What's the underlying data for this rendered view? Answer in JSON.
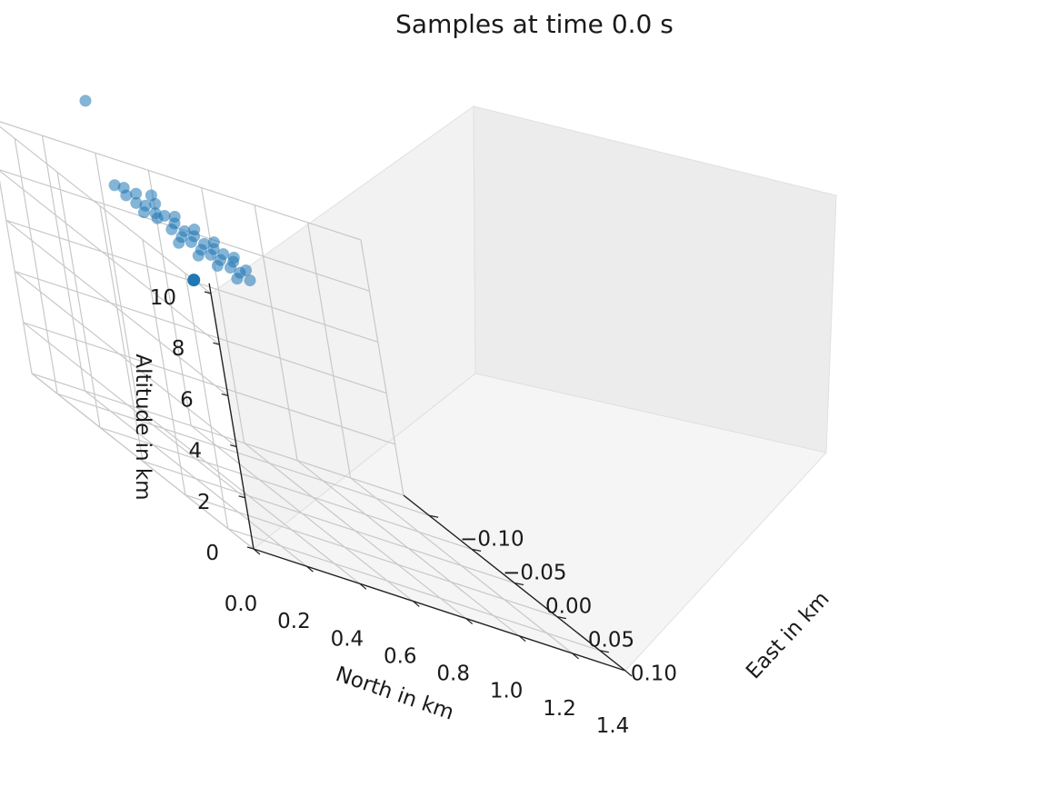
{
  "chart_data": {
    "type": "scatter",
    "title": "Samples at time 0.0 s",
    "xlabel": "North in km",
    "ylabel": "East in km",
    "zlabel": "Altitude in km",
    "xlim": [
      0.0,
      1.4
    ],
    "ylim": [
      -0.13,
      0.13
    ],
    "zlim": [
      0,
      10
    ],
    "x_ticks": [
      "0.0",
      "0.2",
      "0.4",
      "0.6",
      "0.8",
      "1.0",
      "1.2",
      "1.4"
    ],
    "y_ticks": [
      "−0.10",
      "−0.05",
      "0.00",
      "0.05",
      "0.10"
    ],
    "z_ticks": [
      "0",
      "2",
      "4",
      "6",
      "8",
      "10"
    ],
    "grid": true,
    "marker_color": "#1f77b4",
    "series": [
      {
        "points": [
          {
            "x": 0.0,
            "y": 0.11,
            "z": 10.0
          },
          {
            "x": 0.13,
            "y": -0.04,
            "z": 13.5
          },
          {
            "x": 0.27,
            "y": -0.02,
            "z": 10.8
          },
          {
            "x": 0.2,
            "y": -0.03,
            "z": 10.3
          },
          {
            "x": 0.22,
            "y": -0.025,
            "z": 10.2
          },
          {
            "x": 0.24,
            "y": -0.02,
            "z": 10.3
          },
          {
            "x": 0.26,
            "y": -0.015,
            "z": 10.2
          },
          {
            "x": 0.28,
            "y": -0.01,
            "z": 10.3
          },
          {
            "x": 0.3,
            "y": -0.005,
            "z": 10.2
          },
          {
            "x": 0.32,
            "y": 0.0,
            "z": 10.1
          },
          {
            "x": 0.34,
            "y": 0.005,
            "z": 10.1
          },
          {
            "x": 0.36,
            "y": 0.01,
            "z": 10.0
          },
          {
            "x": 0.38,
            "y": 0.015,
            "z": 10.0
          },
          {
            "x": 0.4,
            "y": 0.02,
            "z": 10.0
          },
          {
            "x": 0.42,
            "y": 0.025,
            "z": 9.9
          },
          {
            "x": 0.23,
            "y": -0.02,
            "z": 10.0
          },
          {
            "x": 0.25,
            "y": -0.01,
            "z": 10.1
          },
          {
            "x": 0.27,
            "y": 0.0,
            "z": 10.0
          },
          {
            "x": 0.29,
            "y": 0.005,
            "z": 9.9
          },
          {
            "x": 0.31,
            "y": 0.01,
            "z": 9.9
          },
          {
            "x": 0.33,
            "y": 0.015,
            "z": 9.8
          },
          {
            "x": 0.35,
            "y": 0.02,
            "z": 9.8
          },
          {
            "x": 0.37,
            "y": 0.025,
            "z": 9.8
          },
          {
            "x": 0.39,
            "y": 0.03,
            "z": 9.7
          },
          {
            "x": 0.41,
            "y": 0.035,
            "z": 9.7
          },
          {
            "x": 0.21,
            "y": -0.035,
            "z": 10.5
          },
          {
            "x": 0.24,
            "y": -0.03,
            "z": 10.5
          },
          {
            "x": 0.28,
            "y": -0.02,
            "z": 10.5
          },
          {
            "x": 0.32,
            "y": -0.01,
            "z": 10.4
          },
          {
            "x": 0.36,
            "y": 0.0,
            "z": 10.3
          },
          {
            "x": 0.4,
            "y": 0.01,
            "z": 10.2
          },
          {
            "x": 0.44,
            "y": 0.02,
            "z": 10.0
          },
          {
            "x": 0.26,
            "y": 0.01,
            "z": 9.7
          },
          {
            "x": 0.3,
            "y": 0.02,
            "z": 9.6
          },
          {
            "x": 0.34,
            "y": 0.03,
            "z": 9.6
          },
          {
            "x": 0.38,
            "y": 0.04,
            "z": 9.5
          },
          {
            "x": 0.43,
            "y": 0.04,
            "z": 9.6
          },
          {
            "x": 0.19,
            "y": -0.04,
            "z": 10.4
          },
          {
            "x": 0.45,
            "y": 0.03,
            "z": 9.8
          }
        ]
      }
    ]
  }
}
